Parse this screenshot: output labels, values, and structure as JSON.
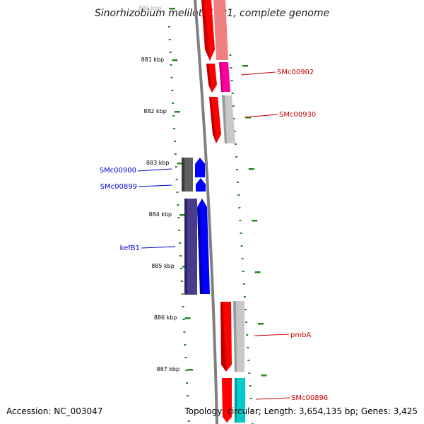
{
  "title": "Sinorhizobium meliloti 1021, complete genome",
  "footer": {
    "accession": "Accession: NC_003047",
    "topology": "Topology: circular; Length: 3,654,135 bp; Genes: 3,425"
  },
  "colors": {
    "tick": "#1e8a1e",
    "backbone": "#808080",
    "forward_label": "#cc0000",
    "reverse_label": "#0000cc"
  },
  "ticks": [
    {
      "label": "880 kbp",
      "kbp": 880
    },
    {
      "label": "881 kbp",
      "kbp": 881
    },
    {
      "label": "882 kbp",
      "kbp": 882
    },
    {
      "label": "883 kbp",
      "kbp": 883
    },
    {
      "label": "884 kbp",
      "kbp": 884
    },
    {
      "label": "885 kbp",
      "kbp": 885
    },
    {
      "label": "886 kbp",
      "kbp": 886
    },
    {
      "label": "887 kbp",
      "kbp": 887
    }
  ],
  "genes": [
    {
      "label": "SMc00902",
      "strand": "forward",
      "color": "#ff00a0"
    },
    {
      "label": "SMc00930",
      "strand": "forward",
      "color": "#c0c0c0"
    },
    {
      "label": "SMc00900",
      "strand": "reverse",
      "color": "#606060"
    },
    {
      "label": "SMc00899",
      "strand": "reverse",
      "color": "#606060"
    },
    {
      "label": "kefB1",
      "strand": "reverse",
      "color": "#4a3c8c"
    },
    {
      "label": "pmbA",
      "strand": "forward",
      "color": "#c0c0c0"
    },
    {
      "label": "SMc00896",
      "strand": "forward",
      "color": "#00cccc"
    }
  ]
}
